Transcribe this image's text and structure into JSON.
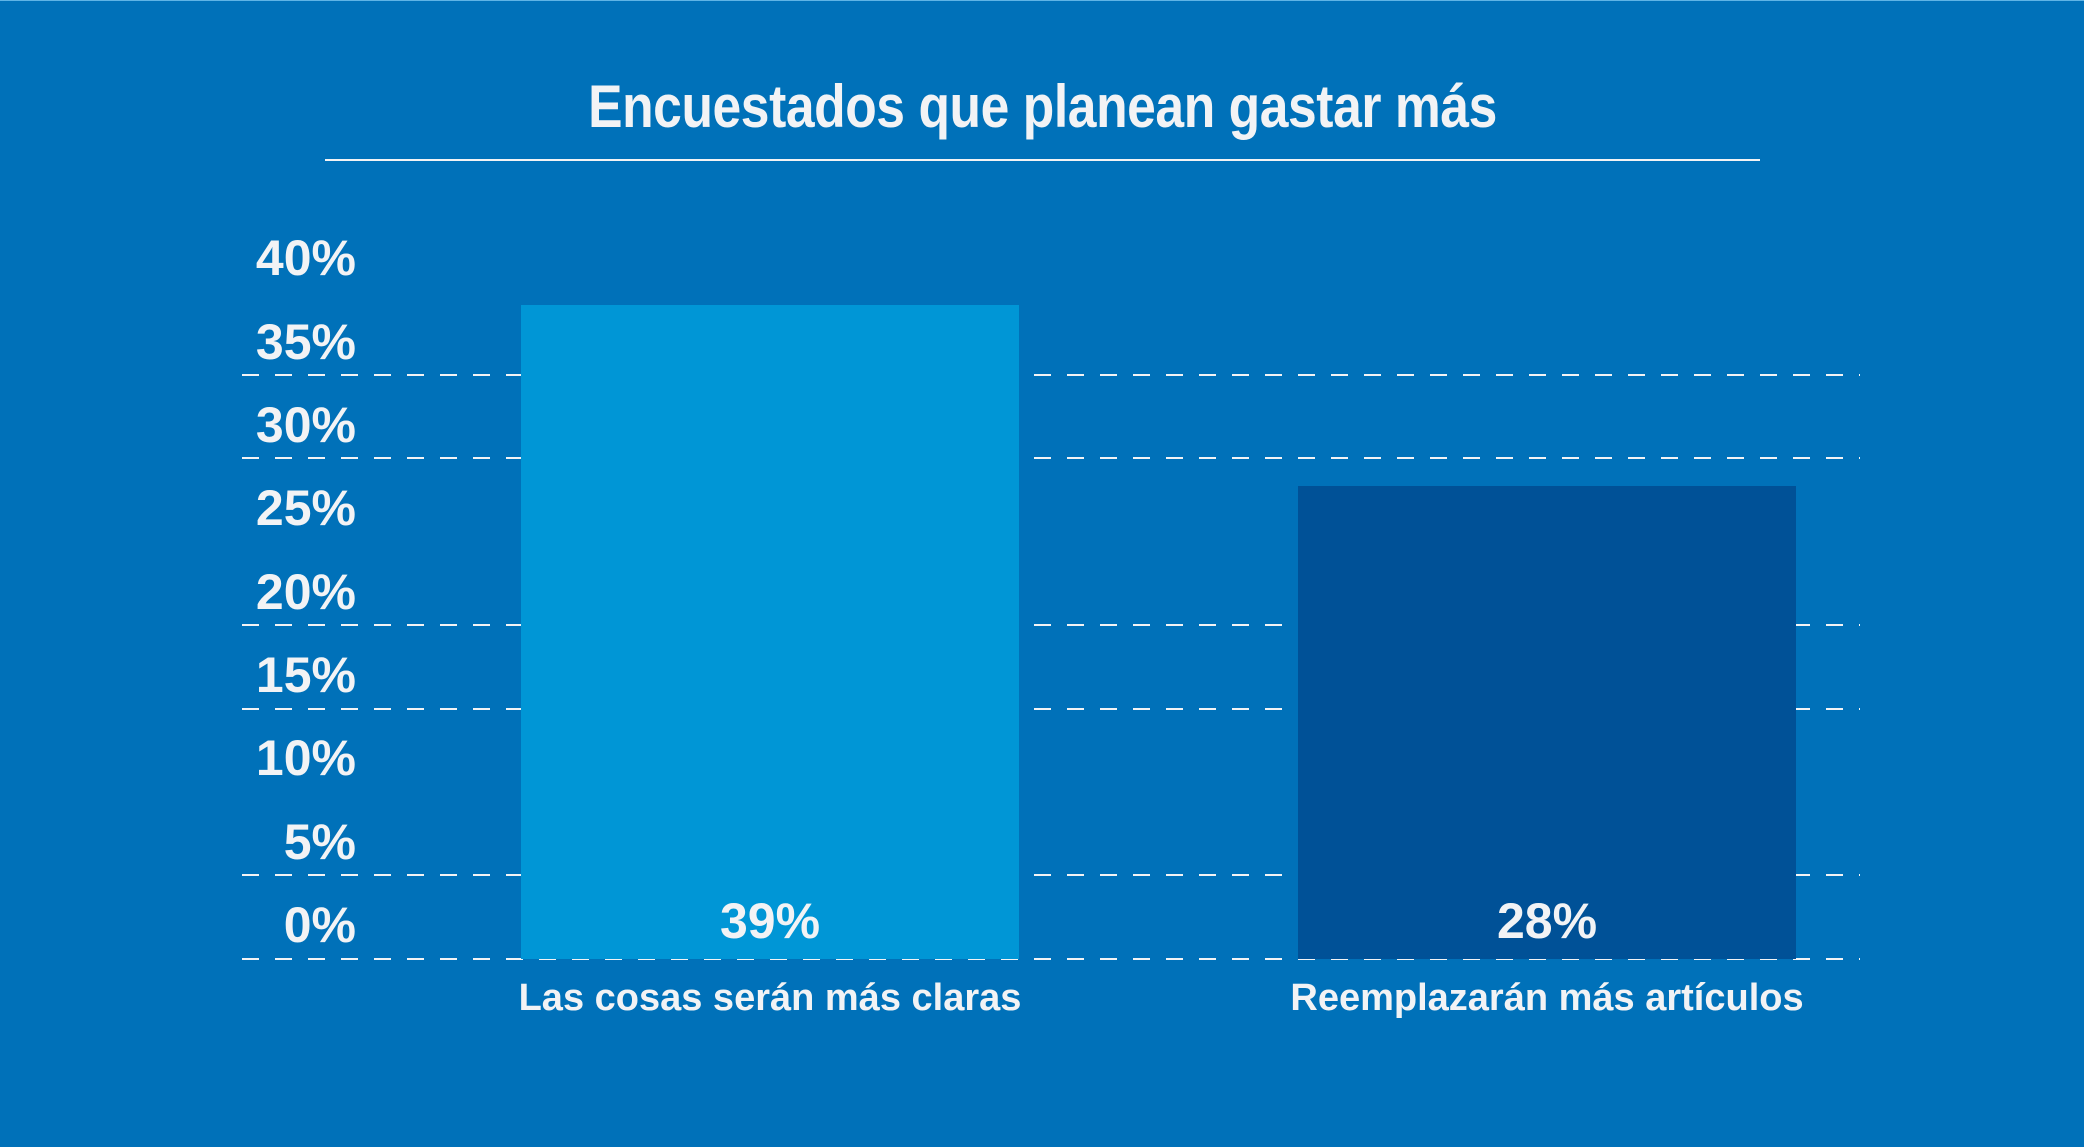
{
  "chart_data": {
    "type": "bar",
    "title": "Encuestados que planean gastar más",
    "xlabel": "",
    "ylabel": "",
    "categories": [
      "Las cosas serán más claras",
      "Reemplazarán más artículos"
    ],
    "values": [
      39,
      28
    ],
    "value_labels": [
      "39%",
      "28%"
    ],
    "ylim": [
      0,
      40
    ],
    "yticks": [
      0,
      5,
      10,
      15,
      20,
      25,
      30,
      35,
      40
    ],
    "ytick_labels": [
      "0%",
      "5%",
      "10%",
      "15%",
      "20%",
      "25%",
      "30%",
      "35%",
      "40%"
    ],
    "grid": true,
    "grid_style": "dashed",
    "legend": "none",
    "colors": {
      "background": "#0071b9",
      "bars": [
        "#0096d6",
        "#005197"
      ],
      "text": "#f2f3f5",
      "grid": "#f2f3f5"
    }
  }
}
